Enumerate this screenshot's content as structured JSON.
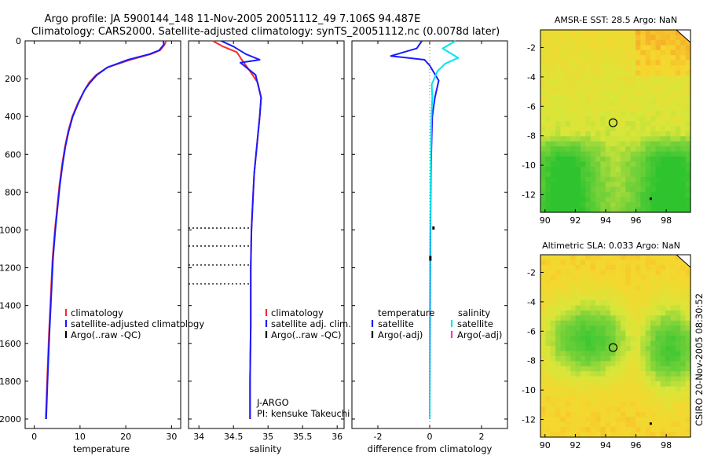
{
  "title": {
    "line1": "Argo profile: JA 5900144_148 11-Nov-2005 20051112_49 7.106S 94.487E",
    "line2": "Climatology: CARS2000. Satellite-adjusted climatology: synTS_20051112.nc (0.0078d later)"
  },
  "colors": {
    "climatology": "#ff2a2a",
    "satellite": "#1a1aff",
    "argo": "#000000",
    "sal_satellite": "#00e5ee",
    "sal_argo": "#ff33cc"
  },
  "chart_data": [
    {
      "type": "line",
      "id": "temperature",
      "xlabel": "temperature",
      "ylabel": "",
      "xlim": [
        -2,
        32
      ],
      "ylim": [
        2050,
        0
      ],
      "xticks": [
        0,
        10,
        20,
        30
      ],
      "yticks": [
        0,
        200,
        400,
        600,
        800,
        1000,
        1200,
        1400,
        1600,
        1800,
        2000
      ],
      "series": [
        {
          "name": "climatology",
          "color": "#ff2a2a",
          "x": [
            28.8,
            28.5,
            27.5,
            25.5,
            21,
            16,
            13.5,
            12,
            11,
            9.5,
            8.3,
            7.4,
            6.7,
            6.1,
            5.5,
            5.0,
            4.5,
            4.0,
            3.6,
            3.2,
            2.8,
            2.5
          ],
          "y": [
            0,
            20,
            50,
            70,
            100,
            140,
            180,
            220,
            260,
            330,
            400,
            480,
            560,
            650,
            760,
            880,
            1000,
            1150,
            1350,
            1550,
            1800,
            2000
          ]
        },
        {
          "name": "satellite-adjusted climatology",
          "color": "#1a1aff",
          "x": [
            28.2,
            28.3,
            27.3,
            25.2,
            20.5,
            16,
            13.7,
            12.2,
            11,
            9.6,
            8.4,
            7.5,
            6.8,
            6.2,
            5.6,
            5.1,
            4.6,
            4.1,
            3.7,
            3.3,
            2.9,
            2.6
          ],
          "y": [
            0,
            20,
            50,
            70,
            100,
            140,
            180,
            220,
            260,
            330,
            400,
            480,
            560,
            650,
            760,
            880,
            1000,
            1150,
            1350,
            1550,
            1800,
            2000
          ]
        }
      ],
      "legend": [
        "climatology",
        "satellite-adjusted climatology",
        "Argo(..raw -QC)"
      ]
    },
    {
      "type": "line",
      "id": "salinity",
      "xlabel": "salinity",
      "ylabel": "",
      "xlim": [
        33.85,
        36.1
      ],
      "ylim": [
        2050,
        0
      ],
      "xticks": [
        34,
        34.5,
        35,
        35.5,
        36
      ],
      "xticklabels": [
        "34",
        "34.5",
        "35",
        "35.5",
        "36"
      ],
      "series": [
        {
          "name": "climatology",
          "color": "#ff2a2a",
          "x": [
            34.2,
            34.35,
            34.55,
            34.62,
            34.72,
            34.85,
            34.9,
            34.88,
            34.84,
            34.8,
            34.78,
            34.76,
            34.75,
            34.75,
            34.74,
            34.74
          ],
          "y": [
            0,
            30,
            60,
            100,
            150,
            220,
            300,
            400,
            550,
            700,
            850,
            1000,
            1200,
            1500,
            1800,
            2000
          ]
        },
        {
          "name": "satellite adj. clim.",
          "color": "#1a1aff",
          "x": [
            34.32,
            34.5,
            34.68,
            34.88,
            34.6,
            34.82,
            34.9,
            34.88,
            34.84,
            34.8,
            34.78,
            34.76,
            34.75,
            34.75,
            34.74,
            34.74
          ],
          "y": [
            0,
            30,
            70,
            100,
            115,
            180,
            300,
            400,
            550,
            700,
            850,
            1000,
            1200,
            1500,
            1800,
            2000
          ]
        }
      ],
      "argo_depths": [
        990,
        1085,
        1185,
        1285
      ],
      "legend": [
        "climatology",
        "satellite adj. clim.",
        "Argo(..raw -QC)"
      ],
      "annotation_1": "J-ARGO",
      "annotation_2": "PI: kensuke Takeuchi"
    },
    {
      "type": "line",
      "id": "difference",
      "xlabel": "difference from climatology",
      "xlim": [
        -3.0,
        3.0
      ],
      "ylim": [
        2050,
        0
      ],
      "xticks": [
        -2,
        0,
        2
      ],
      "xticklabels": [
        "-2",
        "0",
        "2"
      ],
      "series": [
        {
          "name": "temperature satellite",
          "color": "#1a1aff",
          "x": [
            -0.3,
            -0.5,
            -1.5,
            -0.2,
            0.0,
            0.35,
            0.2,
            0.1,
            0.08,
            0.06,
            0.05,
            0.04,
            0.03,
            0.02,
            0.01,
            0.0
          ],
          "y": [
            0,
            40,
            80,
            100,
            130,
            210,
            300,
            400,
            500,
            600,
            700,
            800,
            1000,
            1300,
            1600,
            2000
          ]
        },
        {
          "name": "salinity satellite",
          "color": "#00e5ee",
          "x": [
            1.0,
            0.5,
            1.1,
            0.6,
            0.3,
            0.08,
            0.1,
            0.06,
            0.05,
            0.04,
            0.03,
            0.02,
            0.01,
            0.0,
            0.0
          ],
          "y": [
            0,
            40,
            90,
            120,
            160,
            230,
            300,
            420,
            560,
            700,
            850,
            1000,
            1300,
            1600,
            2000
          ]
        }
      ],
      "legend": {
        "temperature_title": "temperature",
        "salinity_title": "salinity",
        "satellite": "satellite",
        "argo": "Argo(-adj)"
      }
    },
    {
      "type": "heatmap",
      "id": "sst",
      "title": "AMSR-E SST: 28.5 Argo: NaN",
      "xlim": [
        89.7,
        99.6
      ],
      "ylim": [
        -13.2,
        -0.8
      ],
      "xticks": [
        90,
        92,
        94,
        96,
        98
      ],
      "yticks": [
        -2,
        -4,
        -6,
        -8,
        -10,
        -12
      ],
      "marker": {
        "lon": 94.49,
        "lat": -7.11
      }
    },
    {
      "type": "heatmap",
      "id": "sla",
      "title": "Altimetric SLA: 0.033 Argo: NaN",
      "xlim": [
        89.7,
        99.6
      ],
      "ylim": [
        -13.2,
        -0.8
      ],
      "xticks": [
        90,
        92,
        94,
        96,
        98
      ],
      "yticks": [
        -2,
        -4,
        -6,
        -8,
        -10,
        -12
      ],
      "marker": {
        "lon": 94.49,
        "lat": -7.11
      }
    }
  ],
  "footer_stamp": "CSIRO 20-Nov-2005 08:30:52"
}
